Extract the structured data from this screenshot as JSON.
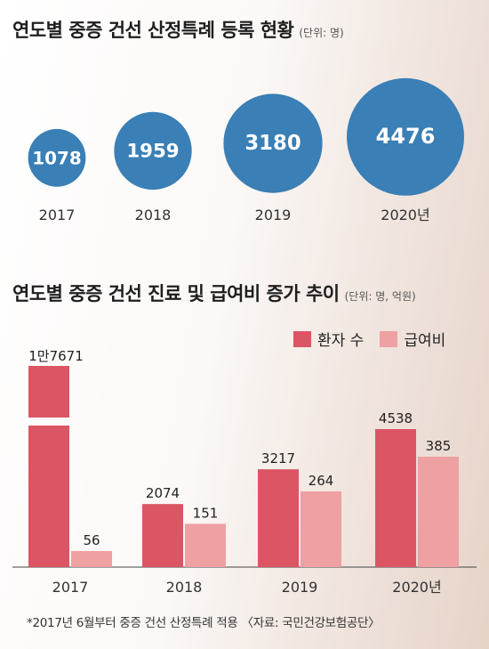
{
  "chart_data": [
    {
      "type": "bubble",
      "title": "연도별 중증 건선 산정특례 등록 현황",
      "unit": "(단위: 명)",
      "categories": [
        "2017",
        "2018",
        "2019",
        "2020년"
      ],
      "values": [
        1078,
        1959,
        3180,
        4476
      ],
      "value_labels": [
        "1078",
        "1959",
        "3180",
        "4476"
      ],
      "color": "#3a7fb5"
    },
    {
      "type": "bar",
      "title": "연도별 중증 건선 진료 및 급여비 증가 추이",
      "unit": "(단위: 명, 억원)",
      "categories": [
        "2017",
        "2018",
        "2019",
        "2020년"
      ],
      "series": [
        {
          "name": "환자 수",
          "values": [
            17671,
            2074,
            3217,
            4538
          ],
          "labels": [
            "1만7671",
            "2074",
            "3217",
            "4538"
          ],
          "color": "#dc5564"
        },
        {
          "name": "급여비",
          "values": [
            56,
            151,
            264,
            385
          ],
          "labels": [
            "56",
            "151",
            "264",
            "385"
          ],
          "color": "#eea0a2"
        }
      ],
      "axis_break": true,
      "legend": "top-right"
    }
  ],
  "footnote": "*2017년 6월부터 중증 건선 산정특례 적용  〈자료: 국민건강보험공단〉"
}
